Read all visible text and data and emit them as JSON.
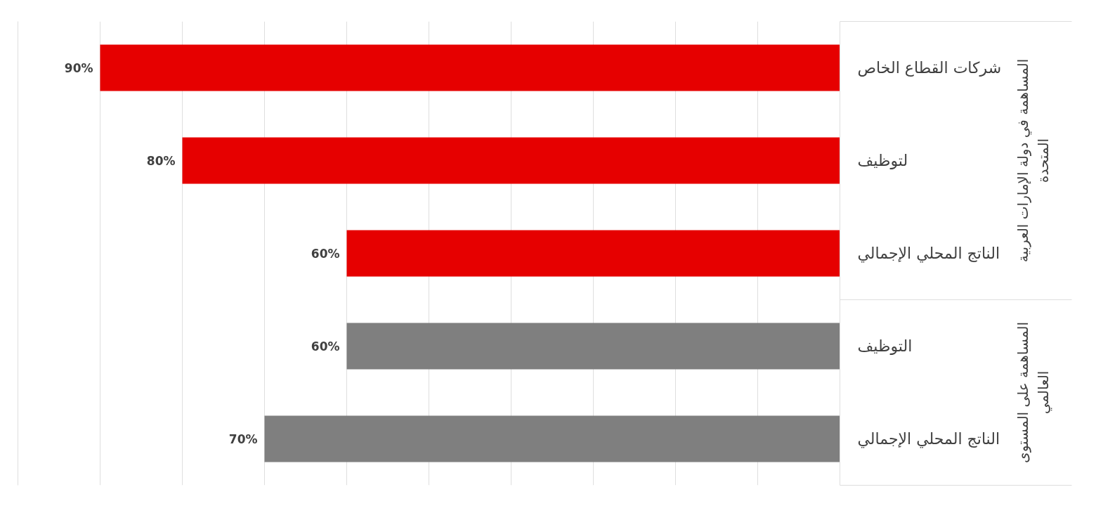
{
  "chart_data": {
    "type": "bar",
    "orientation": "horizontal",
    "categories": [
      "شركات القطاع الخاص",
      "لتوظيف",
      "الناتج المحلي الإجمالي",
      "التوظيف",
      "الناتج المحلي الإجمالي"
    ],
    "series": [
      {
        "name": "المساهمة في دولة الإمارات العربية المتحدة",
        "color": "#e60000",
        "values": [
          90,
          80,
          60,
          null,
          null
        ],
        "value_labels": [
          "90%",
          "80%",
          "60%",
          null,
          null
        ]
      },
      {
        "name": "المساهمة على المستوى العالمي",
        "color": "#7f7f7f",
        "values": [
          null,
          null,
          null,
          60,
          70
        ],
        "value_labels": [
          null,
          null,
          null,
          "60%",
          "70%"
        ]
      }
    ],
    "xlim": [
      100,
      0
    ],
    "xticks": [
      {
        "value": 0,
        "label": null
      },
      {
        "value": 10,
        "label": null
      },
      {
        "value": 20,
        "label": null
      },
      {
        "value": 30,
        "label": null
      },
      {
        "value": 40,
        "label": null
      },
      {
        "value": 50,
        "label": null
      },
      {
        "value": 60,
        "label": null
      },
      {
        "value": 70,
        "label": null
      },
      {
        "value": 80,
        "label": null
      },
      {
        "value": 90,
        "label": null
      },
      {
        "value": 100,
        "label": null
      }
    ],
    "grid": "x",
    "tick_labels": "y"
  }
}
